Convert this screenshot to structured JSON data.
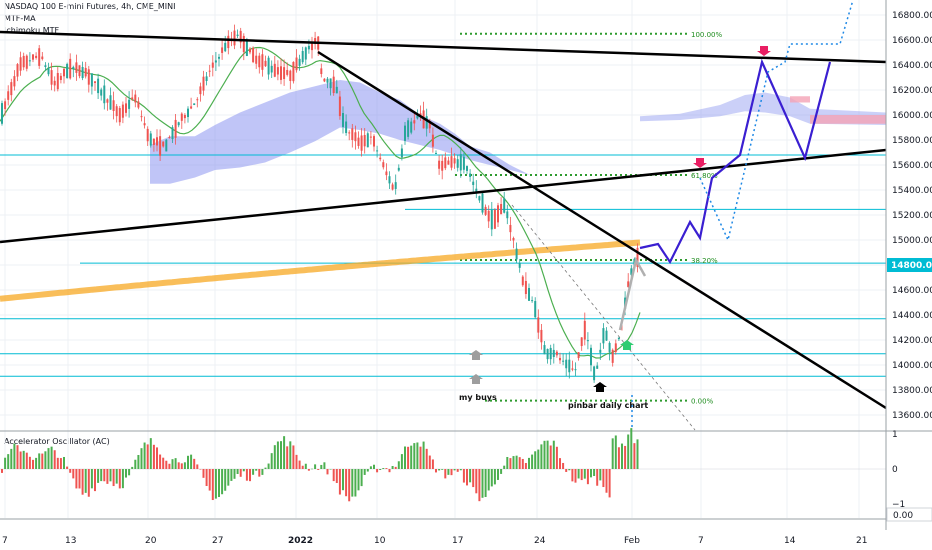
{
  "header": {
    "title": "NASDAQ 100 E-mini Futures, 4h, CME_MINI",
    "indicator_ma": "MTF-MA",
    "indicator_ichimoku": "Ichimoku MTF",
    "oscillator": "Accelerator Oscillator (AC)"
  },
  "colors": {
    "bull": "#26a69a",
    "bear": "#ef5350",
    "cloud": "#8c96f0",
    "cloud_red": "#f4a3b5",
    "trend": "#000000",
    "level": "#00bcd4",
    "fib": "#2e9a2e",
    "projection": "#3a1fd1",
    "projection_dotted": "#1e88e5",
    "ma_slow": "#f7a823",
    "ma_green": "#4caf50",
    "current_badge": "#00bcd4",
    "arrow_red": "#e91e63",
    "arrow_green": "#2ecc71",
    "arrow_grey": "#9e9e9e",
    "arrow_black": "#000000"
  },
  "chart_data": {
    "type": "candlestick",
    "title": "NASDAQ 100 E-mini Futures, 4h, CME_MINI",
    "y_ticks": [
      "16800.00",
      "16600.00",
      "16400.00",
      "16200.00",
      "16000.00",
      "15800.00",
      "15600.00",
      "15400.00",
      "15200.00",
      "15000.00",
      "14800.00",
      "14600.00",
      "14400.00",
      "14200.00",
      "14000.00",
      "13800.00",
      "13600.00"
    ],
    "y_range": [
      13480,
      16920
    ],
    "current_price": "14800.00",
    "x_ticks": [
      "7",
      "13",
      "20",
      "27",
      "2022",
      "10",
      "17",
      "24",
      "Feb",
      "7",
      "14",
      "21"
    ],
    "fib_levels": [
      {
        "label": "100.00%",
        "value": 16650
      },
      {
        "label": "61.80%",
        "value": 15520
      },
      {
        "label": "38.20%",
        "value": 14840
      },
      {
        "label": "0.00%",
        "value": 13715
      }
    ],
    "horizontal_levels": [
      15680,
      15245,
      14815,
      14370,
      14090,
      13910
    ],
    "annotations": [
      "my buys",
      "pinbar daily chart"
    ],
    "oscillator": {
      "name": "Accelerator Oscillator (AC)",
      "y_ticks": [
        "1",
        "0",
        "−1"
      ],
      "value_label": "0.00"
    }
  }
}
